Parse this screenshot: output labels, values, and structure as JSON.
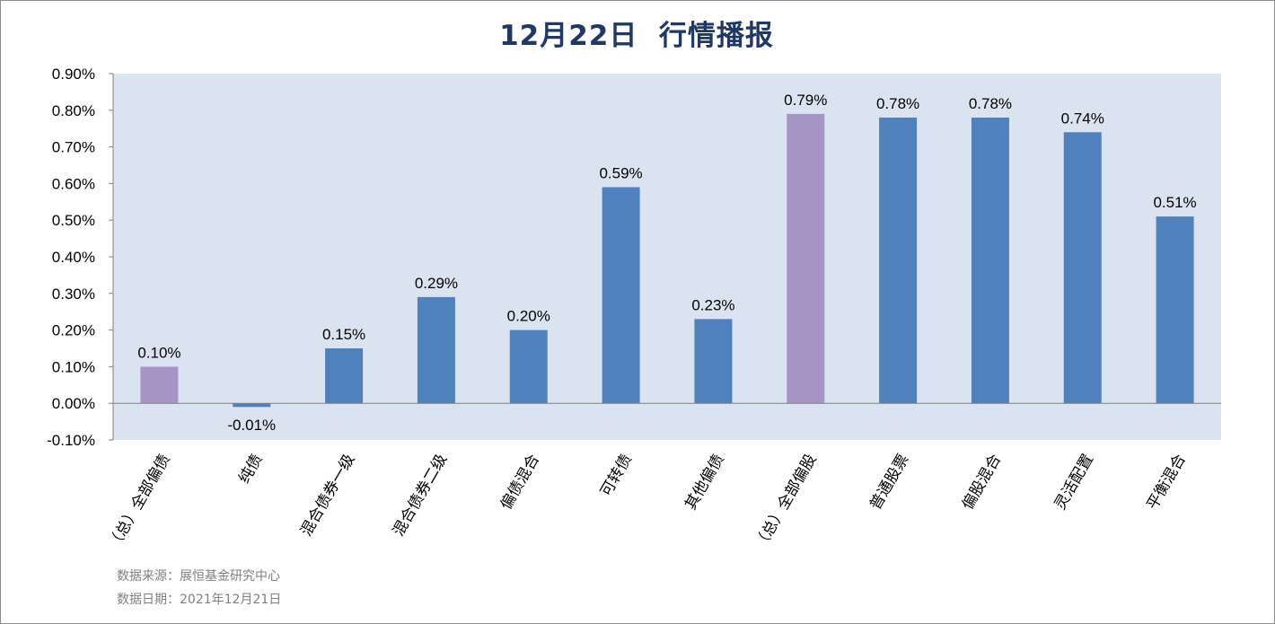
{
  "title": "12月22日  行情播报",
  "footer": {
    "source": "数据来源：展恒基金研究中心",
    "date": "数据日期：2021年12月21日"
  },
  "colors": {
    "plot_bg": "#dae3f0",
    "bar_blue": "#4f81bd",
    "bar_purple": "#a695c4",
    "title": "#1f3864"
  },
  "chart_data": {
    "type": "bar",
    "title": "12月22日  行情播报",
    "xlabel": "",
    "ylabel": "",
    "ylim": [
      -0.1,
      0.9
    ],
    "y_ticks": [
      "0.90%",
      "0.80%",
      "0.70%",
      "0.60%",
      "0.50%",
      "0.40%",
      "0.30%",
      "0.20%",
      "0.10%",
      "0.00%",
      "-0.10%"
    ],
    "y_tick_values": [
      0.9,
      0.8,
      0.7,
      0.6,
      0.5,
      0.4,
      0.3,
      0.2,
      0.1,
      0.0,
      -0.1
    ],
    "grid": false,
    "legend": "none",
    "categories": [
      "（总）全部偏债",
      "纯债",
      "混合债券一级",
      "混合债券二级",
      "偏债混合",
      "可转债",
      "其他偏债",
      "（总）全部偏股",
      "普通股票",
      "偏股混合",
      "灵活配置",
      "平衡混合"
    ],
    "values": [
      0.1,
      -0.01,
      0.15,
      0.29,
      0.2,
      0.59,
      0.23,
      0.79,
      0.78,
      0.78,
      0.74,
      0.51
    ],
    "labels": [
      "0.10%",
      "-0.01%",
      "0.15%",
      "0.29%",
      "0.20%",
      "0.59%",
      "0.23%",
      "0.79%",
      "0.78%",
      "0.78%",
      "0.74%",
      "0.51%"
    ],
    "bar_colors": [
      "#a695c4",
      "#4f81bd",
      "#4f81bd",
      "#4f81bd",
      "#4f81bd",
      "#4f81bd",
      "#4f81bd",
      "#a695c4",
      "#4f81bd",
      "#4f81bd",
      "#4f81bd",
      "#4f81bd"
    ]
  }
}
